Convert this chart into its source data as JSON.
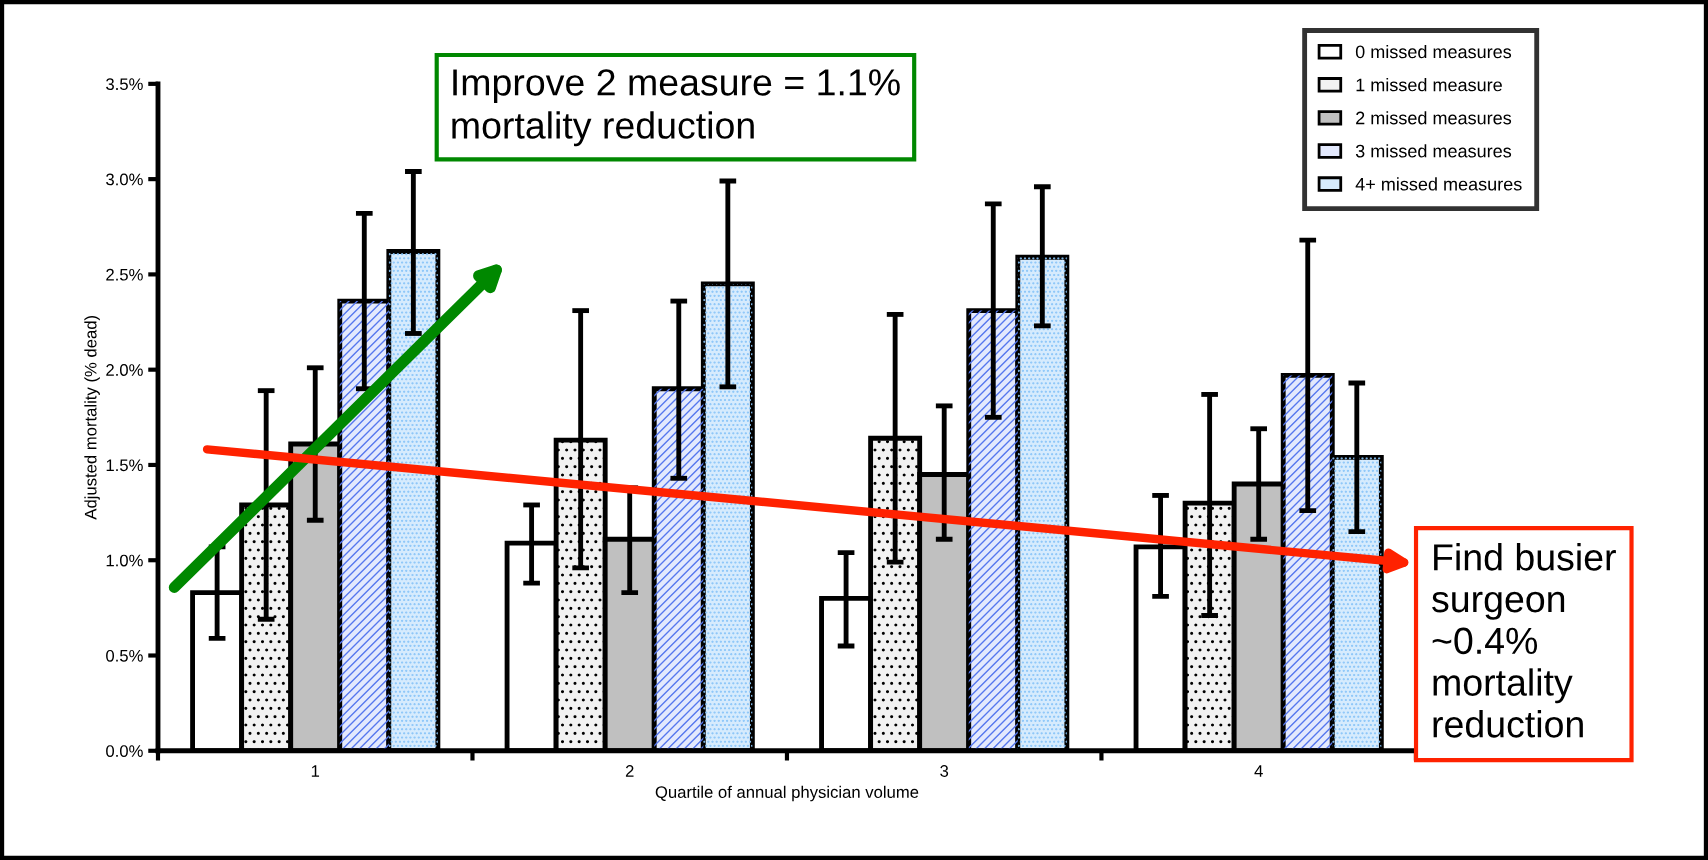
{
  "chart_data": {
    "type": "bar",
    "xlabel": "Quartile of annual physician volume",
    "ylabel": "Adjusted mortality (% dead)",
    "categories": [
      "1",
      "2",
      "3",
      "4"
    ],
    "series": [
      {
        "name": "0 missed measures",
        "color": "#ffffff",
        "values": [
          0.83,
          1.09,
          0.8,
          1.07
        ],
        "errors": [
          [
            0.59,
            1.07
          ],
          [
            0.88,
            1.29
          ],
          [
            0.55,
            1.04
          ],
          [
            0.81,
            1.34
          ]
        ]
      },
      {
        "name": "1 missed measure",
        "color": "#f2f2f2",
        "values": [
          1.29,
          1.63,
          1.64,
          1.3
        ],
        "errors": [
          [
            0.69,
            1.89
          ],
          [
            0.96,
            2.31
          ],
          [
            0.99,
            2.29
          ],
          [
            0.71,
            1.87
          ]
        ]
      },
      {
        "name": "2 missed measures",
        "color": "#c0c0c0",
        "values": [
          1.61,
          1.11,
          1.45,
          1.4
        ],
        "errors": [
          [
            1.21,
            2.01
          ],
          [
            0.83,
            1.38
          ],
          [
            1.11,
            1.81
          ],
          [
            1.11,
            1.69
          ]
        ]
      },
      {
        "name": "3 missed measures",
        "color": "#e3e9fd",
        "values": [
          2.36,
          1.9,
          2.31,
          1.97
        ],
        "errors": [
          [
            1.9,
            2.82
          ],
          [
            1.43,
            2.36
          ],
          [
            1.75,
            2.87
          ],
          [
            1.26,
            2.68
          ]
        ]
      },
      {
        "name": "4+ missed measures",
        "color": "#d6ebfd",
        "values": [
          2.62,
          2.45,
          2.59,
          1.54
        ],
        "errors": [
          [
            2.19,
            3.04
          ],
          [
            1.91,
            2.99
          ],
          [
            2.23,
            2.96
          ],
          [
            1.15,
            1.93
          ]
        ]
      }
    ],
    "ylim": [
      0,
      3.5
    ],
    "yticks": [
      {
        "value": 0,
        "label": "0.0%"
      },
      {
        "value": 0.5,
        "label": "0.5%"
      },
      {
        "value": 1,
        "label": "1.0%"
      },
      {
        "value": 1.5,
        "label": "1.5%"
      },
      {
        "value": 2,
        "label": "2.0%"
      },
      {
        "value": 2.5,
        "label": "2.5%"
      },
      {
        "value": 3,
        "label": "3.0%"
      },
      {
        "value": 3.5,
        "label": "3.5%"
      }
    ],
    "grid": false,
    "legend": "top right",
    "annotations": [
      "Improve 2 measure = 1.1% mortality reduction",
      "Find busier surgeon ~0.4% mortality reduction"
    ]
  }
}
